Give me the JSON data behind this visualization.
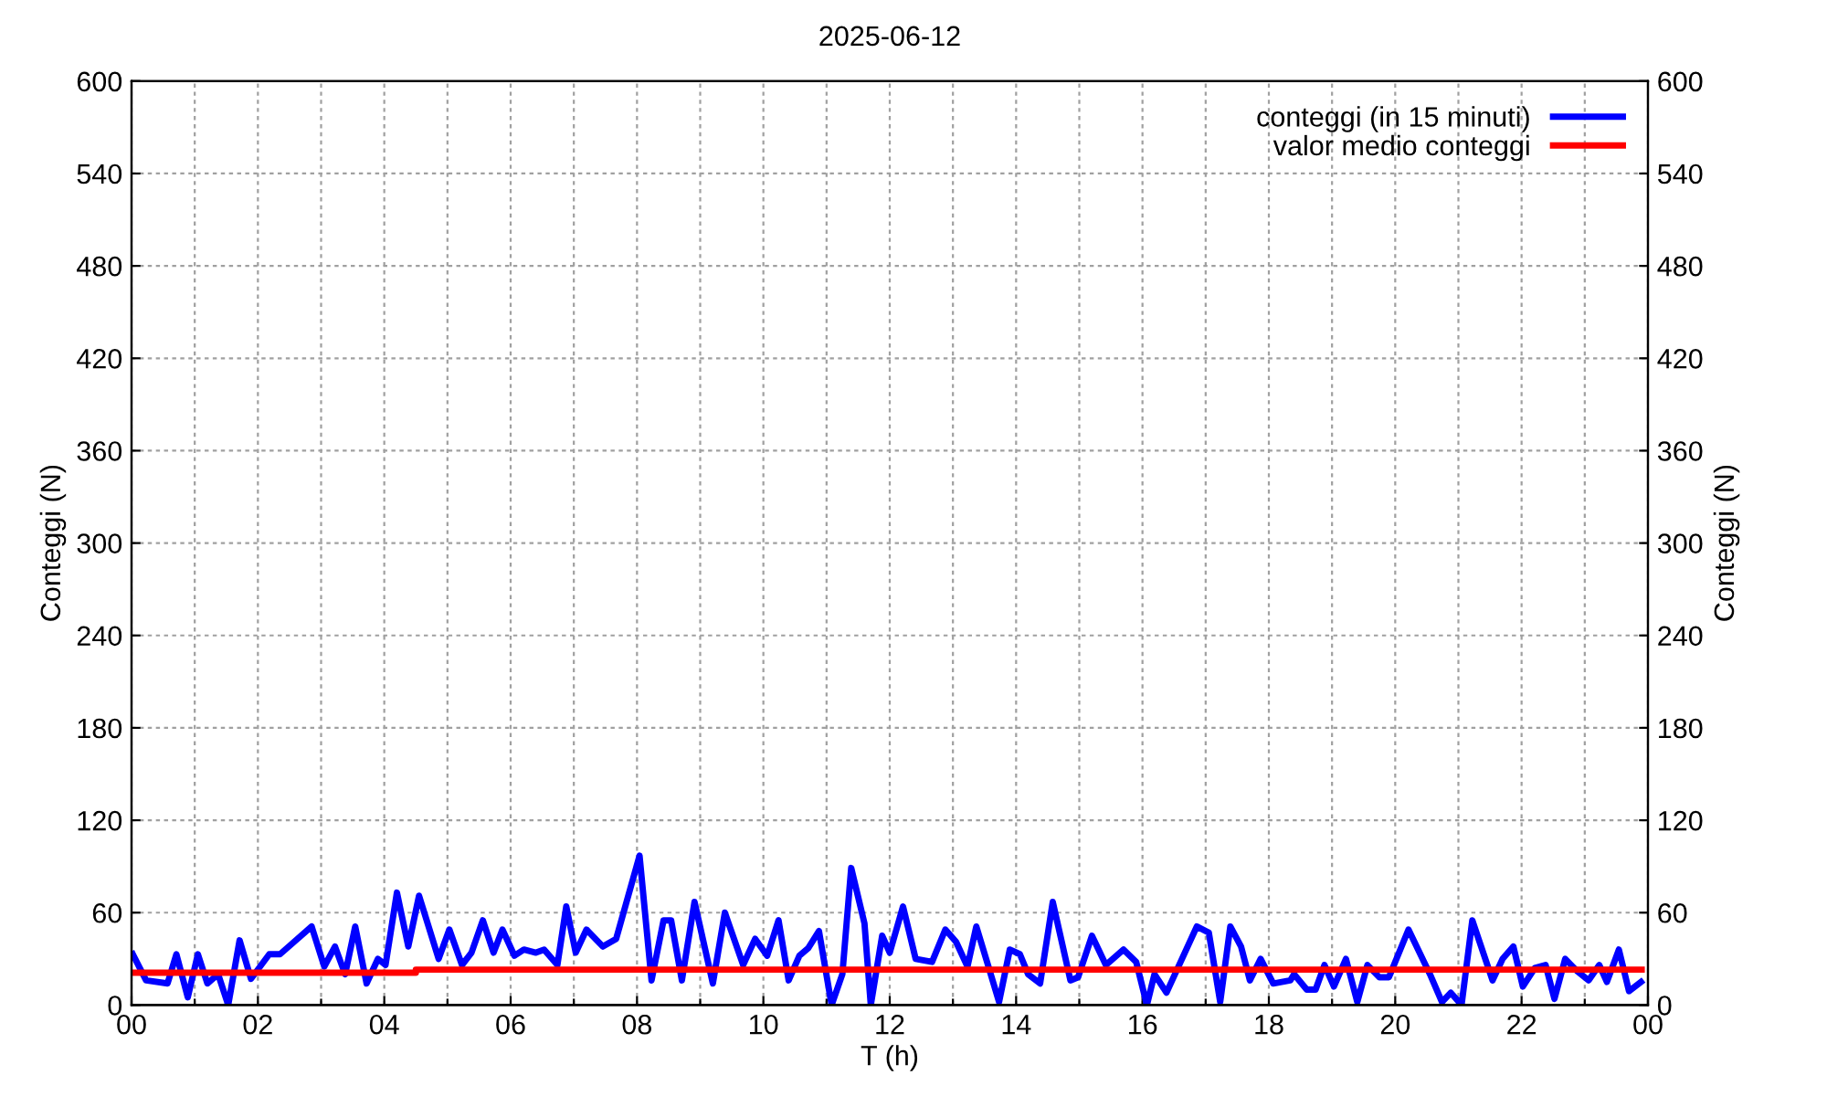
{
  "chart_data": {
    "type": "line",
    "title": "2025-06-12",
    "xlabel": "T (h)",
    "ylabel": "Conteggi (N)",
    "y2label": "Conteggi (N)",
    "xlim": [
      0,
      24
    ],
    "xticks": [
      {
        "value": 0,
        "label": "00"
      },
      {
        "value": 1,
        "label": null
      },
      {
        "value": 2,
        "label": "02"
      },
      {
        "value": 3,
        "label": null
      },
      {
        "value": 4,
        "label": "04"
      },
      {
        "value": 5,
        "label": null
      },
      {
        "value": 6,
        "label": "06"
      },
      {
        "value": 7,
        "label": null
      },
      {
        "value": 8,
        "label": "08"
      },
      {
        "value": 9,
        "label": null
      },
      {
        "value": 10,
        "label": "10"
      },
      {
        "value": 11,
        "label": null
      },
      {
        "value": 12,
        "label": "12"
      },
      {
        "value": 13,
        "label": null
      },
      {
        "value": 14,
        "label": "14"
      },
      {
        "value": 15,
        "label": null
      },
      {
        "value": 16,
        "label": "16"
      },
      {
        "value": 17,
        "label": null
      },
      {
        "value": 18,
        "label": "18"
      },
      {
        "value": 19,
        "label": null
      },
      {
        "value": 20,
        "label": "20"
      },
      {
        "value": 21,
        "label": null
      },
      {
        "value": 22,
        "label": "22"
      },
      {
        "value": 23,
        "label": null
      },
      {
        "value": 24,
        "label": "00"
      }
    ],
    "ylim": [
      0,
      600
    ],
    "yticks": [
      0,
      60,
      120,
      180,
      240,
      300,
      360,
      420,
      480,
      540,
      600
    ],
    "y2lim": [
      0,
      600
    ],
    "y2ticks": [
      0,
      60,
      120,
      180,
      240,
      300,
      360,
      420,
      480,
      540,
      600
    ],
    "grid": true,
    "legend": "top right",
    "line_style": "solid",
    "marker": "none",
    "series": [
      {
        "name": "conteggi (in 15 minuti)",
        "color": "#0000ff",
        "x": [
          0.02,
          0.23,
          0.57,
          0.71,
          0.89,
          1.05,
          1.2,
          1.37,
          1.53,
          1.71,
          1.89,
          2.18,
          2.35,
          2.85,
          3.05,
          3.22,
          3.38,
          3.54,
          3.72,
          3.9,
          4.02,
          4.2,
          4.38,
          4.55,
          4.86,
          5.03,
          5.23,
          5.38,
          5.56,
          5.73,
          5.87,
          6.06,
          6.21,
          6.4,
          6.53,
          6.74,
          6.88,
          7.03,
          7.2,
          7.46,
          7.67,
          8.04,
          8.23,
          8.42,
          8.54,
          8.71,
          8.91,
          9.2,
          9.39,
          9.68,
          9.87,
          10.06,
          10.24,
          10.4,
          10.57,
          10.71,
          10.88,
          11.08,
          11.25,
          11.39,
          11.6,
          11.7,
          11.88,
          12.0,
          12.21,
          12.41,
          12.67,
          12.88,
          13.05,
          13.23,
          13.37,
          13.54,
          13.73,
          13.9,
          14.06,
          14.19,
          14.38,
          14.58,
          14.86,
          14.98,
          15.2,
          15.42,
          15.7,
          15.9,
          16.07,
          16.19,
          16.38,
          16.86,
          17.05,
          17.23,
          17.39,
          17.56,
          17.7,
          17.87,
          18.07,
          18.34,
          18.4,
          18.6,
          18.74,
          18.88,
          19.03,
          19.22,
          19.4,
          19.56,
          19.75,
          19.9,
          20.21,
          20.55,
          20.74,
          20.88,
          21.05,
          21.22,
          21.54,
          21.7,
          21.87,
          22.02,
          22.21,
          22.38,
          22.52,
          22.69,
          22.88,
          23.06,
          23.23,
          23.35,
          23.54,
          23.7,
          23.89
        ],
        "values": [
          33,
          16,
          14,
          33,
          5,
          33,
          14,
          20,
          0,
          42,
          17,
          33,
          33,
          51,
          25,
          38,
          20,
          51,
          14,
          30,
          26,
          73,
          38,
          71,
          30,
          49,
          26,
          34,
          55,
          34,
          49,
          32,
          36,
          34,
          36,
          26,
          64,
          34,
          49,
          38,
          43,
          97,
          16,
          55,
          55,
          16,
          67,
          14,
          60,
          26,
          43,
          32,
          55,
          16,
          32,
          37,
          48,
          0,
          20,
          89,
          53,
          0,
          45,
          34,
          64,
          30,
          28,
          49,
          41,
          25,
          51,
          28,
          2,
          36,
          33,
          20,
          14,
          67,
          16,
          18,
          45,
          26,
          36,
          28,
          0,
          20,
          8,
          51,
          47,
          2,
          51,
          38,
          16,
          30,
          14,
          16,
          20,
          10,
          10,
          26,
          12,
          30,
          2,
          26,
          18,
          18,
          49,
          20,
          2,
          8,
          0,
          55,
          16,
          30,
          38,
          12,
          24,
          26,
          4,
          30,
          22,
          16,
          26,
          15,
          36,
          9,
          15
        ]
      },
      {
        "name": "valor medio conteggi",
        "color": "#ff0000",
        "x": [
          0,
          4.5,
          4.5,
          23.9
        ],
        "values": [
          21,
          21,
          23,
          23
        ]
      }
    ]
  }
}
